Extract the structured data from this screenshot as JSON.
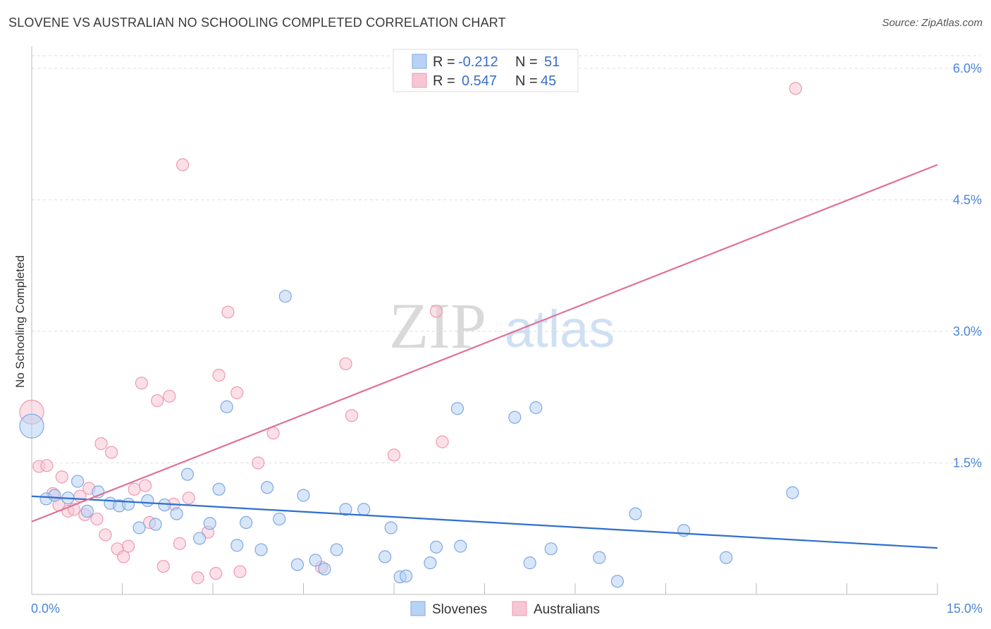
{
  "title": "SLOVENE VS AUSTRALIAN NO SCHOOLING COMPLETED CORRELATION CHART",
  "source": "Source: ZipAtlas.com",
  "watermark": {
    "zip": "ZIP",
    "atlas": "atlas"
  },
  "colors": {
    "slovenes_fill": "#b8d2f4",
    "slovenes_stroke": "#7ea9e2",
    "slovenes_line": "#2e6fce",
    "australians_fill": "#f7c6d4",
    "australians_stroke": "#ee99b3",
    "australians_line": "#e0709a",
    "grid": "#dddddd",
    "tick_label": "#4a86d8"
  },
  "legend": {
    "rows": [
      {
        "r_label": "R =",
        "r_value": "-0.212",
        "n_label": "N =",
        "n_value": "51"
      },
      {
        "r_label": "R =",
        "r_value": "0.547",
        "n_label": "N =",
        "n_value": "45"
      }
    ]
  },
  "bottom_legend": {
    "slovenes": "Slovenes",
    "australians": "Australians"
  },
  "chart_data": {
    "type": "scatter",
    "title": "SLOVENE VS AUSTRALIAN NO SCHOOLING COMPLETED CORRELATION CHART",
    "xlabel": "",
    "ylabel": "No Schooling Completed",
    "xlim": [
      0,
      15
    ],
    "ylim": [
      0,
      6.2
    ],
    "x_tick_labels": {
      "min": "0.0%",
      "max": "15.0%"
    },
    "y_ticks": [
      1.5,
      3.0,
      4.5,
      6.0
    ],
    "y_tick_labels": [
      "1.5%",
      "3.0%",
      "4.5%",
      "6.0%"
    ],
    "grid": true,
    "series": [
      {
        "name": "Slovenes",
        "r": -0.212,
        "n": 51,
        "trend": {
          "x": [
            0,
            15
          ],
          "y": [
            1.12,
            0.53
          ]
        },
        "points": [
          {
            "x": 0.0,
            "y": 1.92,
            "big": true
          },
          {
            "x": 0.24,
            "y": 1.09
          },
          {
            "x": 0.38,
            "y": 1.13
          },
          {
            "x": 0.6,
            "y": 1.1
          },
          {
            "x": 0.76,
            "y": 1.29
          },
          {
            "x": 0.92,
            "y": 0.95
          },
          {
            "x": 1.1,
            "y": 1.17
          },
          {
            "x": 1.3,
            "y": 1.04
          },
          {
            "x": 1.45,
            "y": 1.01
          },
          {
            "x": 1.6,
            "y": 1.03
          },
          {
            "x": 1.78,
            "y": 0.76
          },
          {
            "x": 1.92,
            "y": 1.07
          },
          {
            "x": 2.05,
            "y": 0.8
          },
          {
            "x": 2.2,
            "y": 1.02
          },
          {
            "x": 2.4,
            "y": 0.92
          },
          {
            "x": 2.58,
            "y": 1.37
          },
          {
            "x": 2.78,
            "y": 0.64
          },
          {
            "x": 2.95,
            "y": 0.81
          },
          {
            "x": 3.1,
            "y": 1.2
          },
          {
            "x": 3.23,
            "y": 2.14
          },
          {
            "x": 3.4,
            "y": 0.56
          },
          {
            "x": 3.55,
            "y": 0.82
          },
          {
            "x": 3.8,
            "y": 0.51
          },
          {
            "x": 3.9,
            "y": 1.22
          },
          {
            "x": 4.1,
            "y": 0.86
          },
          {
            "x": 4.2,
            "y": 3.4
          },
          {
            "x": 4.4,
            "y": 0.34
          },
          {
            "x": 4.5,
            "y": 1.13
          },
          {
            "x": 4.7,
            "y": 0.39
          },
          {
            "x": 4.85,
            "y": 0.29
          },
          {
            "x": 5.05,
            "y": 0.51
          },
          {
            "x": 5.2,
            "y": 0.97
          },
          {
            "x": 5.5,
            "y": 0.97
          },
          {
            "x": 5.85,
            "y": 0.43
          },
          {
            "x": 5.95,
            "y": 0.76
          },
          {
            "x": 6.1,
            "y": 0.2
          },
          {
            "x": 6.2,
            "y": 0.21
          },
          {
            "x": 6.6,
            "y": 0.36
          },
          {
            "x": 6.7,
            "y": 0.54
          },
          {
            "x": 7.1,
            "y": 0.55
          },
          {
            "x": 7.05,
            "y": 2.12
          },
          {
            "x": 8.0,
            "y": 2.02
          },
          {
            "x": 8.25,
            "y": 0.36
          },
          {
            "x": 8.35,
            "y": 2.13
          },
          {
            "x": 8.6,
            "y": 0.52
          },
          {
            "x": 9.4,
            "y": 0.42
          },
          {
            "x": 9.7,
            "y": 0.15
          },
          {
            "x": 10.0,
            "y": 0.92
          },
          {
            "x": 10.8,
            "y": 0.73
          },
          {
            "x": 11.5,
            "y": 0.42
          },
          {
            "x": 12.6,
            "y": 1.16
          }
        ]
      },
      {
        "name": "Australians",
        "r": 0.547,
        "n": 45,
        "trend": {
          "x": [
            0,
            15
          ],
          "y": [
            0.83,
            4.9
          ]
        },
        "points": [
          {
            "x": 0.0,
            "y": 2.08,
            "big": true
          },
          {
            "x": 0.12,
            "y": 1.46
          },
          {
            "x": 0.25,
            "y": 1.47
          },
          {
            "x": 0.35,
            "y": 1.15
          },
          {
            "x": 0.45,
            "y": 1.02
          },
          {
            "x": 0.5,
            "y": 1.34
          },
          {
            "x": 0.6,
            "y": 0.95
          },
          {
            "x": 0.7,
            "y": 0.97
          },
          {
            "x": 0.8,
            "y": 1.12
          },
          {
            "x": 0.88,
            "y": 0.91
          },
          {
            "x": 0.95,
            "y": 1.21
          },
          {
            "x": 1.08,
            "y": 0.86
          },
          {
            "x": 1.15,
            "y": 1.72
          },
          {
            "x": 1.22,
            "y": 0.68
          },
          {
            "x": 1.32,
            "y": 1.62
          },
          {
            "x": 1.42,
            "y": 0.52
          },
          {
            "x": 1.52,
            "y": 0.43
          },
          {
            "x": 1.6,
            "y": 0.55
          },
          {
            "x": 1.7,
            "y": 1.2
          },
          {
            "x": 1.82,
            "y": 2.41
          },
          {
            "x": 1.88,
            "y": 1.24
          },
          {
            "x": 1.95,
            "y": 0.82
          },
          {
            "x": 2.08,
            "y": 2.21
          },
          {
            "x": 2.18,
            "y": 0.32
          },
          {
            "x": 2.28,
            "y": 2.26
          },
          {
            "x": 2.35,
            "y": 1.03
          },
          {
            "x": 2.45,
            "y": 0.58
          },
          {
            "x": 2.5,
            "y": 4.9
          },
          {
            "x": 2.6,
            "y": 1.1
          },
          {
            "x": 2.75,
            "y": 0.19
          },
          {
            "x": 2.92,
            "y": 0.71
          },
          {
            "x": 3.05,
            "y": 0.24
          },
          {
            "x": 3.1,
            "y": 2.5
          },
          {
            "x": 3.25,
            "y": 3.22
          },
          {
            "x": 3.4,
            "y": 2.3
          },
          {
            "x": 3.45,
            "y": 0.26
          },
          {
            "x": 3.75,
            "y": 1.5
          },
          {
            "x": 4.0,
            "y": 1.84
          },
          {
            "x": 4.8,
            "y": 0.31
          },
          {
            "x": 5.2,
            "y": 2.63
          },
          {
            "x": 5.3,
            "y": 2.04
          },
          {
            "x": 6.0,
            "y": 1.59
          },
          {
            "x": 6.7,
            "y": 3.23
          },
          {
            "x": 6.8,
            "y": 1.74
          },
          {
            "x": 12.65,
            "y": 5.77
          }
        ]
      }
    ]
  }
}
